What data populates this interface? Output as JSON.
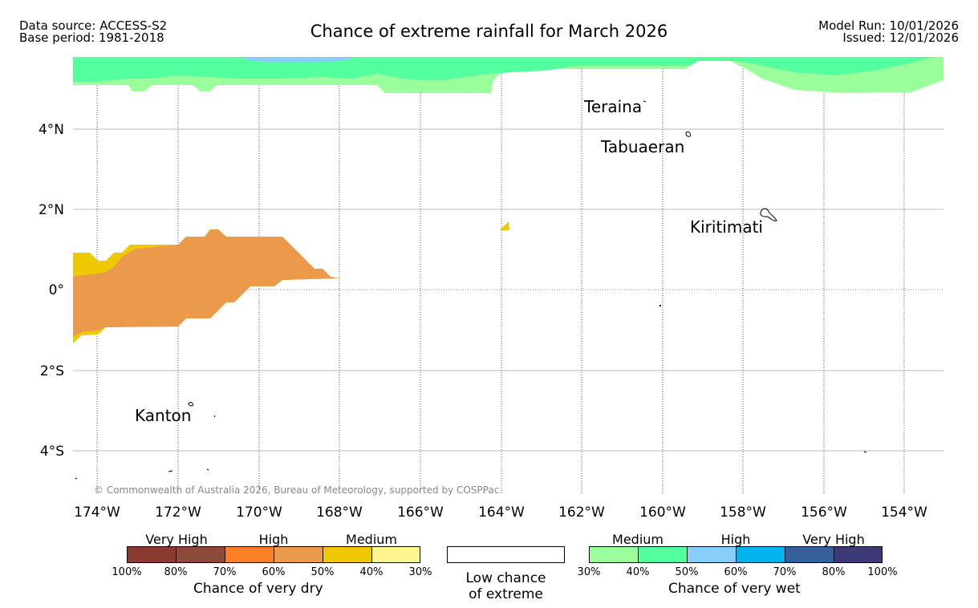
{
  "header": {
    "data_source": "Data source: ACCESS-S2",
    "base_period": "Base period: 1981-2018",
    "title": "Chance of extreme rainfall for March 2026",
    "model_run": "Model Run: 10/01/2026",
    "issued": "Issued: 12/01/2026"
  },
  "map": {
    "lat_labels": [
      "4°N",
      "2°N",
      "0°",
      "2°S",
      "4°S"
    ],
    "lon_labels": [
      "174°W",
      "172°W",
      "170°W",
      "168°W",
      "166°W",
      "164°W",
      "162°W",
      "160°W",
      "158°W",
      "156°W",
      "154°W"
    ],
    "places": [
      "Teraina",
      "Tabuaeran",
      "Kiritimati",
      "Kanton"
    ],
    "copyright": "© Commonwealth of Australia 2026, Bureau of Meteorology, supported by COSPPac"
  },
  "legend": {
    "dry": {
      "groups": [
        "Very High",
        "High",
        "Medium"
      ],
      "ticks": [
        "100%",
        "80%",
        "70%",
        "60%",
        "50%",
        "40%",
        "30%"
      ],
      "title": "Chance of very dry",
      "colors": [
        "#8b3a2f",
        "#8b4a3a",
        "#ff7f24",
        "#ea9a4a",
        "#eec900",
        "#fff68f"
      ]
    },
    "low": {
      "title_line1": "Low chance",
      "title_line2": "of extreme"
    },
    "wet": {
      "groups": [
        "Medium",
        "High",
        "Very High"
      ],
      "ticks": [
        "30%",
        "40%",
        "50%",
        "60%",
        "70%",
        "80%",
        "100%"
      ],
      "title": "Chance of very wet",
      "colors": [
        "#9aff9a",
        "#54ff9f",
        "#87cefa",
        "#00b2ee",
        "#36609a",
        "#3e3a78"
      ]
    }
  }
}
